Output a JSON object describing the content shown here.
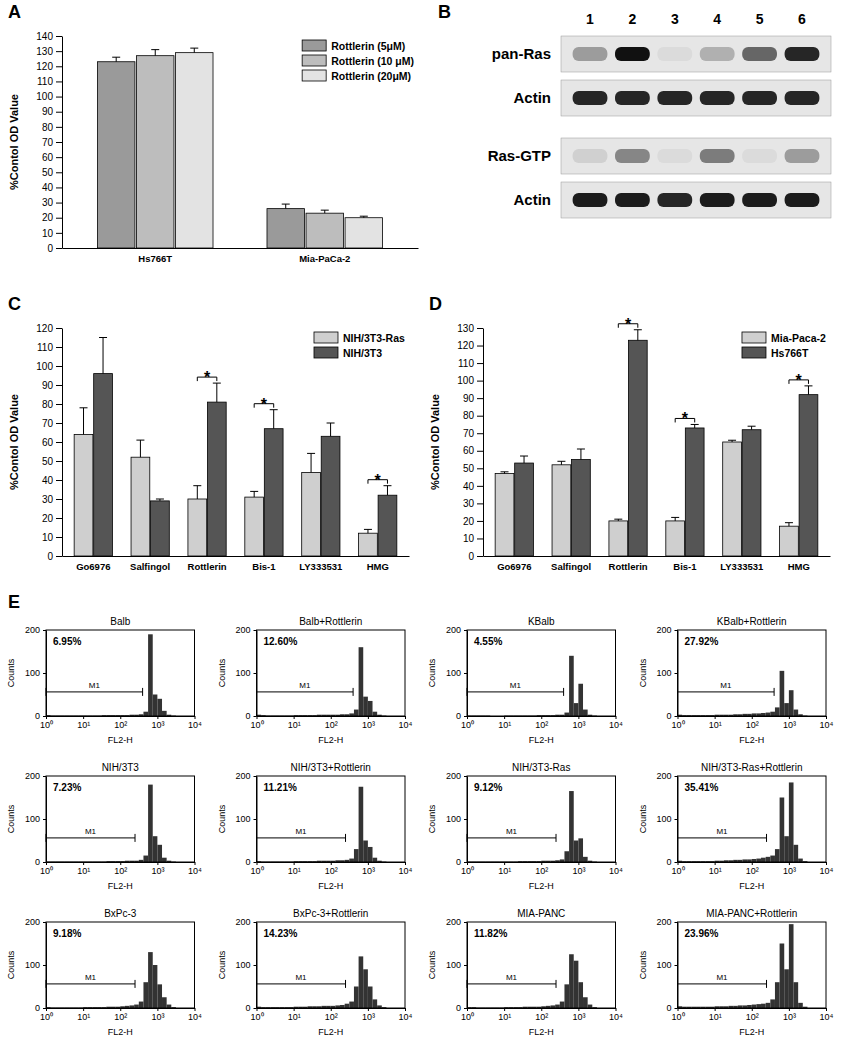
{
  "chart_data": [
    {
      "panel": "A",
      "type": "bar",
      "ylabel": "%Contol OD Value",
      "categories": [
        "Hs766T",
        "Mia-PaCa-2"
      ],
      "series": [
        {
          "name": "Rottlerin (5μM)",
          "color": "#9a9a9a",
          "values": [
            123,
            26
          ],
          "errors": [
            3,
            3
          ]
        },
        {
          "name": "Rottlerin (10 μM)",
          "color": "#bdbdbd",
          "values": [
            127,
            23
          ],
          "errors": [
            4,
            2
          ]
        },
        {
          "name": "Rottlerin (20μM)",
          "color": "#e3e3e3",
          "values": [
            129,
            20
          ],
          "errors": [
            3,
            1
          ]
        }
      ],
      "ylim": [
        0,
        140
      ],
      "yticks": [
        0,
        10,
        20,
        30,
        40,
        50,
        60,
        70,
        80,
        90,
        100,
        110,
        120,
        130,
        140
      ],
      "legend": "top-right"
    },
    {
      "panel": "B",
      "type": "blot",
      "lanes": [
        "1",
        "2",
        "3",
        "4",
        "5",
        "6"
      ],
      "rows": [
        {
          "label": "pan-Ras",
          "intensity": [
            0.35,
            1,
            0.05,
            0.25,
            0.6,
            0.9
          ]
        },
        {
          "label": "Actin",
          "intensity": [
            0.9,
            0.9,
            0.9,
            0.9,
            0.9,
            0.9
          ]
        },
        {
          "label": "Ras-GTP",
          "intensity": [
            0.1,
            0.45,
            0.05,
            0.5,
            0.05,
            0.35
          ]
        },
        {
          "label": "Actin",
          "intensity": [
            0.95,
            0.95,
            0.9,
            0.95,
            0.95,
            0.95
          ]
        }
      ]
    },
    {
      "panel": "C",
      "type": "bar",
      "ylabel": "%Contol OD Value",
      "categories": [
        "Go6976",
        "Salfingol",
        "Rottlerin",
        "Bis-1",
        "LY333531",
        "HMG"
      ],
      "series": [
        {
          "name": "NIH/3T3-Ras",
          "color": "#cfcfcf",
          "values": [
            64,
            52,
            30,
            31,
            44,
            12
          ],
          "errors": [
            14,
            9,
            7,
            3,
            10,
            2
          ]
        },
        {
          "name": "NIH/3T3",
          "color": "#555555",
          "values": [
            96,
            29,
            81,
            67,
            63,
            32
          ],
          "errors": [
            19,
            1,
            10,
            10,
            7,
            5
          ]
        }
      ],
      "ylim": [
        0,
        120
      ],
      "yticks": [
        0,
        10,
        20,
        30,
        40,
        50,
        60,
        70,
        80,
        90,
        100,
        110,
        120
      ],
      "legend": "top-right",
      "annotations": [
        {
          "text": "*",
          "category": "Rottlerin"
        },
        {
          "text": "*",
          "category": "Bis-1"
        },
        {
          "text": "*",
          "category": "HMG"
        }
      ]
    },
    {
      "panel": "D",
      "type": "bar",
      "ylabel": "%Contol OD Value",
      "categories": [
        "Go6976",
        "Salfingol",
        "Rottlerin",
        "Bis-1",
        "LY333531",
        "HMG"
      ],
      "series": [
        {
          "name": "Mia-Paca-2",
          "color": "#cfcfcf",
          "values": [
            47,
            52,
            20,
            20,
            65,
            17
          ],
          "errors": [
            1,
            2,
            1,
            2,
            1,
            2
          ]
        },
        {
          "name": "Hs766T",
          "color": "#555555",
          "values": [
            53,
            55,
            123,
            73,
            72,
            92
          ],
          "errors": [
            4,
            6,
            6,
            2,
            2,
            5
          ]
        }
      ],
      "ylim": [
        0,
        130
      ],
      "yticks": [
        0,
        10,
        20,
        30,
        40,
        50,
        60,
        70,
        80,
        90,
        100,
        110,
        120,
        130
      ],
      "legend": "top-right",
      "annotations": [
        {
          "text": "*",
          "category": "Rottlerin"
        },
        {
          "text": "*",
          "category": "Bis-1"
        },
        {
          "text": "*",
          "category": "HMG"
        }
      ]
    },
    {
      "panel": "E",
      "type": "histogram",
      "xlabel": "FL2-H",
      "ylabel": "Counts",
      "log": "x",
      "color": "#333333",
      "bins": [
        1,
        1.334,
        1.778,
        2.371,
        3.162,
        4.217,
        5.623,
        7.499,
        10,
        13.34,
        17.78,
        23.71,
        31.62,
        42.17,
        56.23,
        74.99,
        100,
        133.4,
        177.8,
        237.1,
        316.2,
        421.7,
        562.3,
        749.9,
        1000,
        1334,
        1778,
        2371,
        3162,
        4217,
        5623,
        7499,
        10000
      ],
      "xlim": [
        1,
        10000
      ],
      "xticks": [
        {
          "value": 1,
          "label": "10⁰"
        },
        {
          "value": 10,
          "label": "10¹"
        },
        {
          "value": 100,
          "label": "10²"
        },
        {
          "value": 1000,
          "label": "10³"
        },
        {
          "value": 10000,
          "label": "10⁴"
        }
      ],
      "ylim": [
        0,
        200
      ],
      "yticks": [
        0,
        100,
        200
      ],
      "panels": [
        {
          "title": "Balb",
          "annotations": [
            {
              "text": "6.95%"
            }
          ],
          "gate": {
            "label": "M1",
            "range": [
              1,
              400
            ]
          },
          "values": [
            2,
            1,
            1,
            1,
            1,
            1,
            1,
            1,
            1,
            1,
            1,
            1,
            2,
            2,
            2,
            2,
            2,
            2,
            3,
            3,
            4,
            10,
            190,
            50,
            40,
            12,
            3,
            1,
            0,
            0,
            0,
            0
          ]
        },
        {
          "title": "Balb+Rottlerin",
          "annotations": [
            {
              "text": "12.60%"
            }
          ],
          "gate": {
            "label": "M1",
            "range": [
              1,
              400
            ]
          },
          "values": [
            3,
            2,
            1,
            1,
            1,
            1,
            1,
            1,
            2,
            2,
            2,
            2,
            2,
            3,
            3,
            3,
            3,
            3,
            4,
            4,
            6,
            15,
            160,
            45,
            35,
            10,
            3,
            1,
            0,
            0,
            0,
            0
          ]
        },
        {
          "title": "KBalb",
          "annotations": [
            {
              "text": "4.55%"
            }
          ],
          "gate": {
            "label": "M1",
            "range": [
              1,
              400
            ]
          },
          "values": [
            1,
            1,
            1,
            1,
            1,
            0,
            0,
            0,
            1,
            1,
            1,
            1,
            1,
            1,
            1,
            2,
            2,
            2,
            2,
            3,
            3,
            8,
            140,
            30,
            75,
            15,
            3,
            1,
            0,
            0,
            0,
            0
          ]
        },
        {
          "title": "KBalb+Rottlerin",
          "annotations": [
            {
              "text": "27.92%"
            }
          ],
          "gate": {
            "label": "M1",
            "range": [
              1,
              400
            ]
          },
          "values": [
            3,
            2,
            2,
            2,
            2,
            2,
            2,
            2,
            3,
            3,
            3,
            3,
            4,
            4,
            5,
            5,
            6,
            6,
            7,
            8,
            10,
            20,
            105,
            30,
            60,
            15,
            4,
            1,
            0,
            0,
            0,
            0
          ]
        },
        {
          "title": "NIH/3T3",
          "annotations": [
            {
              "text": "7.23%"
            }
          ],
          "gate": {
            "label": "M1",
            "range": [
              1,
              250
            ]
          },
          "values": [
            1,
            1,
            1,
            1,
            1,
            1,
            1,
            1,
            1,
            1,
            1,
            1,
            1,
            2,
            2,
            2,
            2,
            3,
            3,
            3,
            5,
            15,
            180,
            60,
            40,
            10,
            3,
            1,
            0,
            0,
            0,
            0
          ]
        },
        {
          "title": "NIH/3T3+Rottlerin",
          "annotations": [
            {
              "text": "11.21%"
            }
          ],
          "gate": {
            "label": "M1",
            "range": [
              1,
              250
            ]
          },
          "values": [
            2,
            1,
            1,
            1,
            1,
            1,
            1,
            1,
            2,
            2,
            2,
            2,
            2,
            3,
            3,
            3,
            3,
            4,
            4,
            5,
            8,
            30,
            175,
            50,
            35,
            10,
            3,
            1,
            0,
            0,
            0,
            0
          ]
        },
        {
          "title": "NIH/3T3-Ras",
          "annotations": [
            {
              "text": "9.12%"
            }
          ],
          "gate": {
            "label": "M1",
            "range": [
              1,
              250
            ]
          },
          "values": [
            1,
            1,
            1,
            1,
            1,
            1,
            1,
            1,
            1,
            1,
            1,
            2,
            2,
            2,
            2,
            2,
            3,
            3,
            3,
            4,
            6,
            25,
            165,
            50,
            55,
            12,
            3,
            1,
            0,
            0,
            0,
            0
          ]
        },
        {
          "title": "NIH/3T3-Ras+Rottlerin",
          "annotations": [
            {
              "text": "35.41%"
            }
          ],
          "gate": {
            "label": "M1",
            "range": [
              1,
              250
            ]
          },
          "values": [
            3,
            2,
            2,
            2,
            2,
            2,
            2,
            2,
            3,
            3,
            4,
            4,
            5,
            5,
            6,
            6,
            7,
            8,
            10,
            12,
            15,
            30,
            150,
            60,
            185,
            40,
            8,
            2,
            0,
            0,
            0,
            0
          ]
        },
        {
          "title": "BxPc-3",
          "annotations": [
            {
              "text": "9.18%"
            }
          ],
          "gate": {
            "label": "M1",
            "range": [
              1,
              250
            ]
          },
          "values": [
            2,
            1,
            1,
            1,
            1,
            1,
            1,
            1,
            2,
            2,
            2,
            2,
            2,
            3,
            3,
            3,
            4,
            5,
            6,
            8,
            15,
            60,
            130,
            100,
            55,
            25,
            8,
            2,
            0,
            0,
            0,
            0
          ]
        },
        {
          "title": "BxPc-3+Rottlerin",
          "annotations": [
            {
              "text": "14.23%"
            }
          ],
          "gate": {
            "label": "M1",
            "range": [
              1,
              250
            ]
          },
          "values": [
            3,
            2,
            2,
            2,
            2,
            2,
            2,
            2,
            3,
            3,
            3,
            4,
            4,
            4,
            5,
            5,
            5,
            6,
            7,
            10,
            15,
            50,
            120,
            90,
            50,
            20,
            6,
            2,
            0,
            0,
            0,
            0
          ]
        },
        {
          "title": "MIA-PANC",
          "annotations": [
            {
              "text": "11.82%"
            }
          ],
          "gate": {
            "label": "M1",
            "range": [
              1,
              250
            ]
          },
          "values": [
            2,
            2,
            1,
            1,
            1,
            1,
            1,
            1,
            2,
            2,
            2,
            2,
            3,
            3,
            3,
            3,
            4,
            5,
            6,
            8,
            15,
            55,
            125,
            110,
            60,
            25,
            8,
            2,
            0,
            0,
            0,
            0
          ]
        },
        {
          "title": "MIA-PANC+Rottlerin",
          "annotations": [
            {
              "text": "23.96%"
            }
          ],
          "gate": {
            "label": "M1",
            "range": [
              1,
              250
            ]
          },
          "values": [
            4,
            3,
            3,
            3,
            3,
            3,
            3,
            3,
            4,
            4,
            4,
            5,
            5,
            6,
            6,
            7,
            8,
            9,
            10,
            12,
            20,
            60,
            150,
            90,
            195,
            60,
            12,
            3,
            0,
            0,
            0,
            0
          ]
        }
      ]
    }
  ]
}
